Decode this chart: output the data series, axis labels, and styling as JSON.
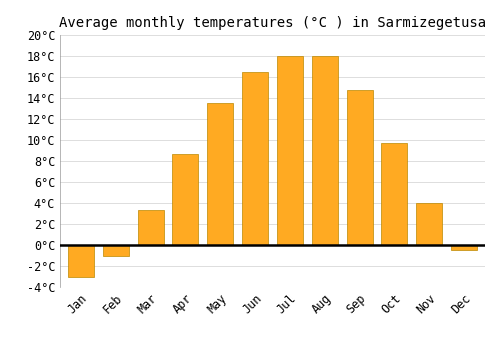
{
  "title": "Average monthly temperatures (°C ) in Sarmizegetusa",
  "months": [
    "Jan",
    "Feb",
    "Mar",
    "Apr",
    "May",
    "Jun",
    "Jul",
    "Aug",
    "Sep",
    "Oct",
    "Nov",
    "Dec"
  ],
  "values": [
    -3.0,
    -1.0,
    3.3,
    8.7,
    13.5,
    16.5,
    18.0,
    18.0,
    14.8,
    9.7,
    4.0,
    -0.5
  ],
  "bar_color": "#FFAA22",
  "bar_edge_color": "#BB8800",
  "ylim": [
    -4,
    20
  ],
  "yticks": [
    -4,
    -2,
    0,
    2,
    4,
    6,
    8,
    10,
    12,
    14,
    16,
    18,
    20
  ],
  "background_color": "#FFFFFF",
  "grid_color": "#DDDDDD",
  "title_fontsize": 10,
  "tick_fontsize": 8.5,
  "zero_line_color": "#000000"
}
